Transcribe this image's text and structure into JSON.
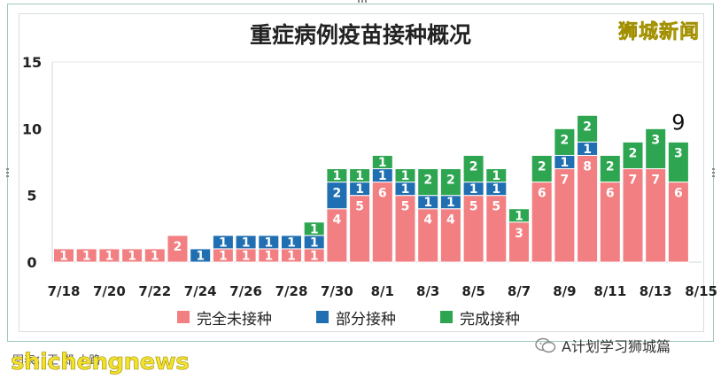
{
  "brand_cn": "狮城新闻",
  "legend": [
    {
      "name": "完全未接种",
      "color": "#f27f82"
    },
    {
      "name": "部分接种",
      "color": "#1f6fb2"
    },
    {
      "name": "完成接种",
      "color": "#2ea651"
    }
  ],
  "footer": {
    "credit": "图表：王 郑 小路",
    "brand_en": "shichengnews",
    "wechat_label": "A计划学习狮城篇",
    "wechat_icon": "wechat-icon"
  },
  "chart_data": {
    "type": "bar",
    "stacked": true,
    "title": "重症病例疫苗接种概况",
    "ylim": [
      0,
      15
    ],
    "yticks": [
      0,
      5,
      10,
      15
    ],
    "categories": [
      "7/18",
      "7/19",
      "7/20",
      "7/21",
      "7/22",
      "7/23",
      "7/24",
      "7/25",
      "7/26",
      "7/27",
      "7/28",
      "7/29",
      "7/30",
      "7/31",
      "8/1",
      "8/2",
      "8/3",
      "8/4",
      "8/5",
      "8/6",
      "8/7",
      "8/8",
      "8/9",
      "8/10",
      "8/11",
      "8/12",
      "8/13",
      "8/14"
    ],
    "xtick_labels": [
      "7/18",
      "7/20",
      "7/22",
      "7/24",
      "7/26",
      "7/28",
      "7/30",
      "8/1",
      "8/3",
      "8/5",
      "8/7",
      "8/9",
      "8/11",
      "8/13",
      "8/15"
    ],
    "series": [
      {
        "name": "完全未接种",
        "color": "#f27f82",
        "values": [
          1,
          1,
          1,
          1,
          1,
          2,
          0,
          1,
          1,
          1,
          1,
          1,
          4,
          5,
          6,
          5,
          4,
          4,
          5,
          5,
          3,
          6,
          7,
          8,
          6,
          7,
          7,
          6
        ]
      },
      {
        "name": "部分接种",
        "color": "#1f6fb2",
        "values": [
          0,
          0,
          0,
          0,
          0,
          0,
          1,
          1,
          1,
          1,
          1,
          1,
          2,
          1,
          1,
          1,
          1,
          1,
          1,
          1,
          0,
          0,
          1,
          1,
          0,
          0,
          0,
          0
        ]
      },
      {
        "name": "完成接种",
        "color": "#2ea651",
        "values": [
          0,
          0,
          0,
          0,
          0,
          0,
          0,
          0,
          0,
          0,
          0,
          1,
          1,
          1,
          1,
          1,
          2,
          2,
          2,
          1,
          1,
          2,
          2,
          2,
          2,
          2,
          3,
          3
        ]
      }
    ],
    "annotations": [
      {
        "category": "8/14",
        "text": "9"
      }
    ],
    "legend_position": "bottom",
    "grid": false
  }
}
